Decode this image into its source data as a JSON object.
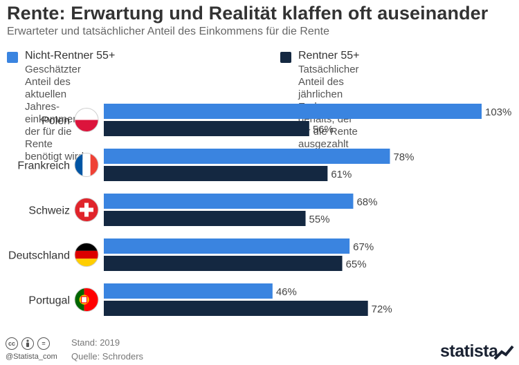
{
  "title": "Rente: Erwartung und Realität klaffen oft auseinander",
  "subtitle": "Erwarteter und tatsächlicher Anteil des Einkommens für die Rente",
  "legend": [
    {
      "label": "Nicht-Rentner 55+",
      "desc_lines": [
        "Geschätzter Anteil des aktuellen Jahres-",
        "einkommens, der für die Rente benötigt wird"
      ],
      "color": "#3a84e0"
    },
    {
      "label": "Rentner 55+",
      "desc_lines": [
        "Tatsächlicher Anteil des jährlichen End-",
        "gehalts, der für die Rente ausgezahlt wird"
      ],
      "color": "#142841"
    }
  ],
  "chart_data": {
    "type": "bar",
    "orientation": "horizontal",
    "categories": [
      "Polen",
      "Frankreich",
      "Schweiz",
      "Deutschland",
      "Portugal"
    ],
    "series": [
      {
        "name": "Nicht-Rentner 55+",
        "values": [
          103,
          78,
          68,
          67,
          46
        ],
        "color": "#3a84e0"
      },
      {
        "name": "Rentner 55+",
        "values": [
          56,
          61,
          55,
          65,
          72
        ],
        "color": "#142841"
      }
    ],
    "value_suffix": "%",
    "flags": [
      "poland-flag-icon",
      "france-flag-icon",
      "switzerland-flag-icon",
      "germany-flag-icon",
      "portugal-flag-icon"
    ]
  },
  "footer": {
    "handle": "@Statista_com",
    "stand": "Stand: 2019",
    "quelle": "Quelle: Schroders",
    "brand": "statista",
    "cc_icons": [
      "cc",
      "by",
      "="
    ]
  }
}
